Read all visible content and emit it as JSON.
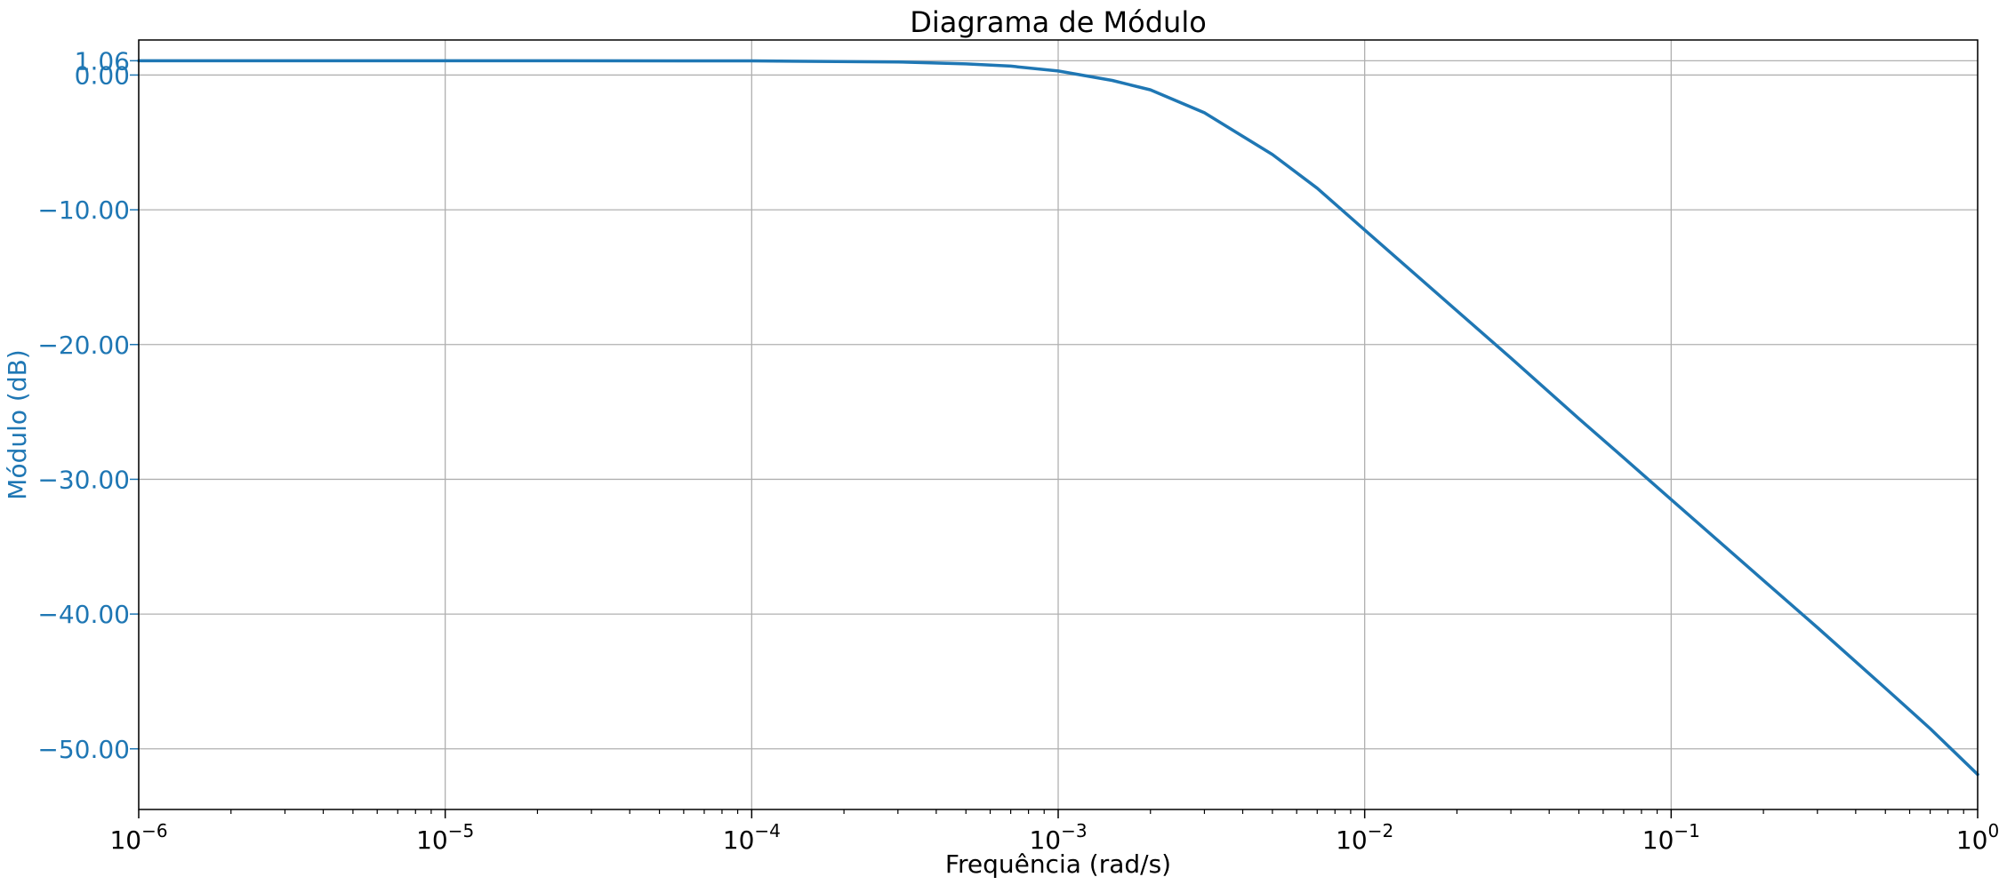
{
  "chart_data": {
    "type": "line",
    "title": "Diagrama de Módulo",
    "xlabel": "Frequência (rad/s)",
    "ylabel": "Módulo (dB)",
    "xscale": "log",
    "xlim": [
      1e-06,
      1
    ],
    "ylim": [
      -54.5,
      2.6
    ],
    "grid": true,
    "x_ticks": [
      {
        "base": "10",
        "exp": "−6",
        "value": 1e-06
      },
      {
        "base": "10",
        "exp": "−5",
        "value": 1e-05
      },
      {
        "base": "10",
        "exp": "−4",
        "value": 0.0001
      },
      {
        "base": "10",
        "exp": "−3",
        "value": 0.001
      },
      {
        "base": "10",
        "exp": "−2",
        "value": 0.01
      },
      {
        "base": "10",
        "exp": "−1",
        "value": 0.1
      },
      {
        "base": "10",
        "exp": "0",
        "value": 1
      }
    ],
    "y_ticks": [
      {
        "label": "1.06",
        "value": 1.06
      },
      {
        "label": "0.00",
        "value": 0.0
      },
      {
        "label": "−10.00",
        "value": -10.0
      },
      {
        "label": "−20.00",
        "value": -20.0
      },
      {
        "label": "−30.00",
        "value": -30.0
      },
      {
        "label": "−40.00",
        "value": -40.0
      },
      {
        "label": "−50.00",
        "value": -50.0
      }
    ],
    "series": [
      {
        "color": "#1f77b4",
        "x": [
          1e-06,
          1e-05,
          0.0001,
          0.0003,
          0.0005,
          0.0007,
          0.001,
          0.0015,
          0.002,
          0.003,
          0.005,
          0.007,
          0.01,
          0.02,
          0.03,
          0.05,
          0.07,
          0.1,
          0.2,
          0.3,
          0.5,
          0.7,
          1
        ],
        "y": [
          1.06,
          1.06,
          1.05,
          0.97,
          0.83,
          0.66,
          0.3,
          -0.4,
          -1.1,
          -2.8,
          -5.9,
          -8.4,
          -11.5,
          -17.5,
          -21.0,
          -25.5,
          -28.4,
          -31.5,
          -37.5,
          -41.0,
          -45.5,
          -48.5,
          -51.9
        ]
      }
    ],
    "colors": {
      "line": "#1f77b4",
      "grid": "#b0b0b0",
      "axis": "#000000",
      "yaxis_text": "#1f77b4"
    }
  }
}
